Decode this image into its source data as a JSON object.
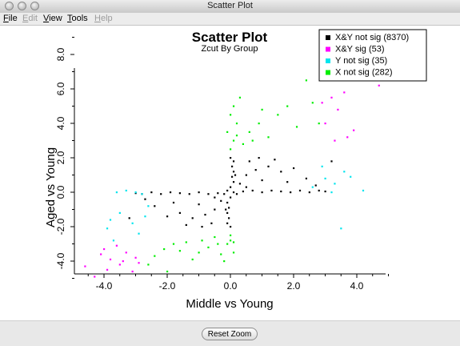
{
  "window": {
    "title": "Scatter Plot"
  },
  "menubar": {
    "items": [
      {
        "label": "File",
        "mnemonic": "F",
        "rest": "ile",
        "enabled": true
      },
      {
        "label": "Edit",
        "mnemonic": "E",
        "rest": "dit",
        "enabled": false
      },
      {
        "label": "View",
        "mnemonic": "V",
        "rest": "iew",
        "enabled": true
      },
      {
        "label": "Tools",
        "mnemonic": "T",
        "rest": "ools",
        "enabled": true
      },
      {
        "label": "Help",
        "mnemonic": "H",
        "rest": "elp",
        "enabled": false
      }
    ]
  },
  "footer": {
    "reset_zoom_label": "Reset Zoom"
  },
  "chart_data": {
    "type": "scatter",
    "title": "Scatter Plot",
    "subtitle": "Zcut By Group",
    "xlabel": "Middle vs Young",
    "ylabel": "Aged vs Young",
    "xlim": [
      -5.0,
      5.0
    ],
    "ylim": [
      -5.0,
      9.0
    ],
    "xticks": [
      -4.0,
      -2.0,
      0.0,
      2.0,
      4.0
    ],
    "xtick_labels": [
      "-4.0",
      "-2.0",
      "0.0",
      "2.0",
      "4.0"
    ],
    "yticks": [
      -4.0,
      -2.0,
      0.0,
      2.0,
      4.0,
      6.0,
      8.0
    ],
    "ytick_labels": [
      "-4.0",
      "-2.0",
      "0.0",
      "2.0",
      "4.0",
      "6.0",
      "8.0"
    ],
    "grid": false,
    "legend_position": "top-right",
    "series": [
      {
        "name": "X&Y not sig (8370)",
        "color": "#000000",
        "points": [
          [
            0.1,
            0.0
          ],
          [
            -0.1,
            0.1
          ],
          [
            0.2,
            -0.1
          ],
          [
            -0.2,
            -0.1
          ],
          [
            0.0,
            0.3
          ],
          [
            0.0,
            -0.3
          ],
          [
            0.1,
            0.6
          ],
          [
            -0.1,
            -0.6
          ],
          [
            0.05,
            0.9
          ],
          [
            -0.05,
            -0.9
          ],
          [
            0.1,
            1.2
          ],
          [
            -0.1,
            -1.2
          ],
          [
            0.05,
            1.5
          ],
          [
            -0.05,
            -1.5
          ],
          [
            0.1,
            1.8
          ],
          [
            -0.1,
            -1.8
          ],
          [
            0.0,
            2.0
          ],
          [
            0.0,
            -2.0
          ],
          [
            0.15,
            1.0
          ],
          [
            -0.15,
            -1.0
          ],
          [
            0.4,
            0.05
          ],
          [
            -0.4,
            -0.05
          ],
          [
            0.7,
            0.1
          ],
          [
            -0.7,
            -0.1
          ],
          [
            1.0,
            0.0
          ],
          [
            -1.0,
            0.0
          ],
          [
            1.3,
            0.1
          ],
          [
            -1.3,
            -0.1
          ],
          [
            1.6,
            0.05
          ],
          [
            -1.6,
            -0.05
          ],
          [
            1.9,
            0.0
          ],
          [
            -1.9,
            0.0
          ],
          [
            2.2,
            0.1
          ],
          [
            -2.2,
            -0.1
          ],
          [
            2.5,
            0.0
          ],
          [
            -2.5,
            0.0
          ],
          [
            2.8,
            0.1
          ],
          [
            -2.8,
            -0.1
          ],
          [
            3.0,
            0.05
          ],
          [
            -3.0,
            -0.05
          ],
          [
            0.5,
            1.0
          ],
          [
            0.8,
            1.3
          ],
          [
            1.2,
            1.5
          ],
          [
            1.6,
            1.2
          ],
          [
            2.0,
            1.4
          ],
          [
            2.4,
            0.8
          ],
          [
            1.0,
            0.7
          ],
          [
            0.6,
            1.8
          ],
          [
            0.9,
            2.0
          ],
          [
            1.4,
            1.9
          ],
          [
            -0.5,
            -1.0
          ],
          [
            -0.8,
            -1.3
          ],
          [
            -1.2,
            -1.5
          ],
          [
            -1.6,
            -1.2
          ],
          [
            -2.0,
            -1.4
          ],
          [
            -2.4,
            -0.8
          ],
          [
            -1.0,
            -0.7
          ],
          [
            -0.6,
            -1.8
          ],
          [
            -0.9,
            -2.0
          ],
          [
            -1.4,
            -1.9
          ],
          [
            0.3,
            0.5
          ],
          [
            0.5,
            0.3
          ],
          [
            -0.3,
            -0.5
          ],
          [
            -0.5,
            -0.3
          ],
          [
            1.8,
            0.6
          ],
          [
            -1.8,
            -0.6
          ],
          [
            2.7,
            0.4
          ],
          [
            -2.7,
            -0.4
          ],
          [
            3.2,
            1.8
          ],
          [
            -3.2,
            -1.5
          ]
        ]
      },
      {
        "name": "X&Y sig (53)",
        "color": "#ff00ff",
        "points": [
          [
            4.5,
            8.0
          ],
          [
            4.3,
            6.8
          ],
          [
            4.7,
            6.2
          ],
          [
            3.2,
            5.5
          ],
          [
            3.4,
            4.8
          ],
          [
            3.0,
            4.0
          ],
          [
            3.6,
            5.8
          ],
          [
            3.9,
            3.6
          ],
          [
            3.3,
            3.0
          ],
          [
            4.1,
            6.5
          ],
          [
            3.7,
            3.2
          ],
          [
            2.9,
            5.2
          ],
          [
            -4.6,
            -4.3
          ],
          [
            -4.3,
            -4.9
          ],
          [
            -4.0,
            -3.3
          ],
          [
            -3.8,
            -3.9
          ],
          [
            -3.5,
            -4.2
          ],
          [
            -3.1,
            -4.6
          ],
          [
            -3.6,
            -3.1
          ],
          [
            -3.9,
            -4.5
          ],
          [
            -4.1,
            -3.6
          ],
          [
            -3.3,
            -3.5
          ],
          [
            -3.0,
            -3.8
          ],
          [
            -2.9,
            -4.1
          ],
          [
            -3.4,
            -4.0
          ]
        ]
      },
      {
        "name": "Y not sig (35)",
        "color": "#00e5ee",
        "points": [
          [
            -3.6,
            0.0
          ],
          [
            -3.3,
            0.1
          ],
          [
            -3.0,
            0.0
          ],
          [
            -2.8,
            -0.1
          ],
          [
            -3.8,
            -1.6
          ],
          [
            -3.5,
            -1.2
          ],
          [
            -2.6,
            -0.8
          ],
          [
            -3.1,
            -1.8
          ],
          [
            -3.9,
            -2.1
          ],
          [
            -2.9,
            -2.4
          ],
          [
            -3.7,
            -2.8
          ],
          [
            -2.7,
            -1.4
          ],
          [
            2.6,
            0.3
          ],
          [
            3.0,
            0.8
          ],
          [
            3.3,
            0.5
          ],
          [
            3.6,
            1.2
          ],
          [
            3.2,
            0.0
          ],
          [
            2.9,
            1.5
          ],
          [
            3.8,
            0.9
          ],
          [
            4.2,
            0.1
          ],
          [
            3.5,
            -2.1
          ]
        ]
      },
      {
        "name": "X not sig (282)",
        "color": "#00ee00",
        "points": [
          [
            0.0,
            2.5
          ],
          [
            0.1,
            3.0
          ],
          [
            -0.1,
            3.5
          ],
          [
            0.2,
            4.0
          ],
          [
            0.0,
            4.5
          ],
          [
            0.1,
            5.0
          ],
          [
            0.3,
            5.5
          ],
          [
            0.6,
            3.5
          ],
          [
            0.9,
            4.0
          ],
          [
            1.2,
            3.2
          ],
          [
            1.5,
            4.5
          ],
          [
            1.8,
            5.0
          ],
          [
            2.1,
            3.8
          ],
          [
            2.4,
            6.5
          ],
          [
            2.6,
            5.2
          ],
          [
            2.8,
            4.0
          ],
          [
            0.4,
            2.8
          ],
          [
            0.7,
            3.0
          ],
          [
            1.0,
            4.8
          ],
          [
            0.2,
            3.3
          ],
          [
            0.0,
            -2.5
          ],
          [
            -0.1,
            -3.0
          ],
          [
            0.1,
            -3.5
          ],
          [
            -0.2,
            -4.0
          ],
          [
            0.0,
            -2.8
          ],
          [
            -0.4,
            -3.0
          ],
          [
            -0.7,
            -3.2
          ],
          [
            -1.0,
            -3.5
          ],
          [
            -1.4,
            -2.9
          ],
          [
            -1.8,
            -3.0
          ],
          [
            -2.1,
            -3.3
          ],
          [
            -2.4,
            -3.7
          ],
          [
            -2.6,
            -4.2
          ],
          [
            -0.5,
            -2.6
          ],
          [
            -0.9,
            -2.8
          ],
          [
            -1.2,
            -3.9
          ],
          [
            -1.6,
            -3.4
          ],
          [
            -2.0,
            -4.6
          ],
          [
            -0.3,
            -3.6
          ],
          [
            0.1,
            -2.9
          ]
        ]
      }
    ]
  }
}
